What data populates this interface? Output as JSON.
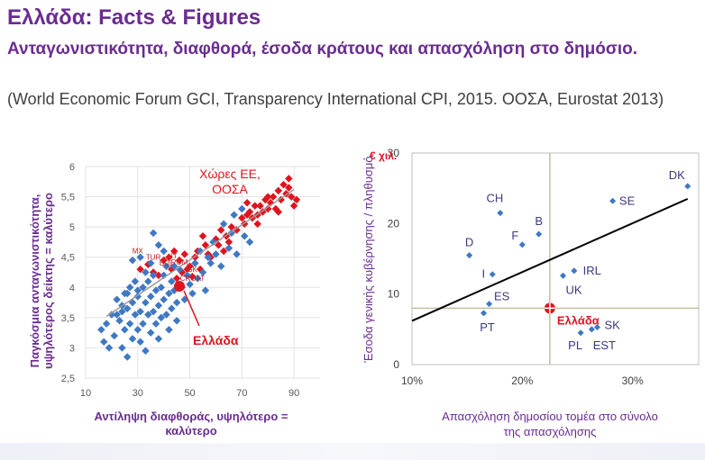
{
  "header": {
    "title": "Ελλάδα: Facts & Figures",
    "subtitle": "Ανταγωνιστικότητα, διαφθορά, έσοδα κράτους και απασχόληση στο δημόσιο.",
    "source": "(World Economic Forum GCI, Transparency International CPI, 2015. ΟΟΣΑ, Eurostat 2013)"
  },
  "colors": {
    "title": "#6a2c91",
    "blue": "#3f78c3",
    "red": "#e0141e",
    "axis_label": "#6a2c91"
  },
  "chart_data": [
    {
      "type": "scatter",
      "title": "",
      "xlabel": "Αντίληψη διαφθοράς, υψηλότερο = καλύτερο",
      "ylabel": "Παγκόσμια ανταγωνιστικότητα, υψηλότερος δείκτης = καλύτερο",
      "xlim": [
        10,
        100
      ],
      "ylim": [
        2.5,
        6
      ],
      "xticks": [
        "10",
        "30",
        "50",
        "70",
        "90"
      ],
      "yticks": [
        "2,5",
        "3",
        "3,5",
        "4",
        "4,5",
        "5",
        "5,5",
        "6"
      ],
      "grid": true,
      "legend": "Χώρες ΕΕ, ΟΟΣΑ",
      "annotations": [
        {
          "label": "MX",
          "x": 30,
          "y": 4.5
        },
        {
          "label": "TUR",
          "x": 36,
          "y": 4.4
        },
        {
          "label": "IT",
          "x": 44,
          "y": 4.42
        },
        {
          "label": "BUL",
          "x": 41,
          "y": 4.3
        },
        {
          "label": "ROM",
          "x": 46,
          "y": 4.32
        },
        {
          "label": "CROAT",
          "x": 51,
          "y": 4.05
        },
        {
          "label": "SK",
          "x": 51,
          "y": 4.2
        },
        {
          "label": "Ελλάδα",
          "x": 46,
          "y": 4.02
        }
      ],
      "highlight": {
        "name": "Ελλάδα",
        "x": 46,
        "y": 4.02
      },
      "trend": {
        "from": [
          18,
          3.52
        ],
        "to": [
          90,
          5.62
        ]
      },
      "series": [
        {
          "name": "Χώρες ΕΕ, ΟΟΣΑ",
          "points": [
            [
              31,
              4.3
            ],
            [
              34,
              4.38
            ],
            [
              36,
              4.25
            ],
            [
              38,
              4.2
            ],
            [
              40,
              4.45
            ],
            [
              42,
              4.5
            ],
            [
              43,
              4.3
            ],
            [
              44,
              4.6
            ],
            [
              45,
              4.15
            ],
            [
              46,
              4.45
            ],
            [
              47,
              4.25
            ],
            [
              48,
              4.55
            ],
            [
              49,
              4.3
            ],
            [
              50,
              4.35
            ],
            [
              51,
              4.18
            ],
            [
              52,
              4.5
            ],
            [
              53,
              4.6
            ],
            [
              54,
              4.3
            ],
            [
              55,
              4.85
            ],
            [
              56,
              4.7
            ],
            [
              57,
              4.55
            ],
            [
              58,
              4.5
            ],
            [
              60,
              4.8
            ],
            [
              61,
              4.7
            ],
            [
              62,
              4.95
            ],
            [
              63,
              4.6
            ],
            [
              64,
              4.85
            ],
            [
              65,
              4.75
            ],
            [
              66,
              5.0
            ],
            [
              68,
              4.95
            ],
            [
              70,
              5.15
            ],
            [
              71,
              5.05
            ],
            [
              72,
              5.2
            ],
            [
              73,
              5.25
            ],
            [
              74,
              5.15
            ],
            [
              75,
              5.35
            ],
            [
              76,
              5.2
            ],
            [
              77,
              5.35
            ],
            [
              78,
              5.25
            ],
            [
              79,
              5.45
            ],
            [
              80,
              5.3
            ],
            [
              81,
              5.4
            ],
            [
              82,
              5.5
            ],
            [
              83,
              5.3
            ],
            [
              84,
              5.6
            ],
            [
              85,
              5.45
            ],
            [
              86,
              5.7
            ],
            [
              87,
              5.55
            ],
            [
              88,
              5.65
            ],
            [
              89,
              5.5
            ],
            [
              90,
              5.35
            ],
            [
              91,
              5.45
            ],
            [
              84,
              5.25
            ],
            [
              80,
              5.5
            ],
            [
              76,
              5.05
            ],
            [
              72,
              5.4
            ],
            [
              88,
              5.8
            ]
          ]
        },
        {
          "name": "",
          "points": [
            [
              16,
              3.3
            ],
            [
              17,
              3.1
            ],
            [
              18,
              3.4
            ],
            [
              19,
              3.0
            ],
            [
              20,
              3.55
            ],
            [
              21,
              3.2
            ],
            [
              22,
              3.8
            ],
            [
              23,
              3.45
            ],
            [
              24,
              3.6
            ],
            [
              24,
              3.0
            ],
            [
              25,
              3.9
            ],
            [
              25,
              3.3
            ],
            [
              26,
              3.65
            ],
            [
              26,
              2.85
            ],
            [
              27,
              3.4
            ],
            [
              27,
              4.0
            ],
            [
              28,
              3.75
            ],
            [
              28,
              3.15
            ],
            [
              29,
              3.55
            ],
            [
              29,
              4.1
            ],
            [
              30,
              3.3
            ],
            [
              30,
              3.85
            ],
            [
              31,
              3.6
            ],
            [
              31,
              3.1
            ],
            [
              32,
              4.0
            ],
            [
              32,
              3.4
            ],
            [
              33,
              3.75
            ],
            [
              33,
              2.95
            ],
            [
              34,
              3.55
            ],
            [
              34,
              4.1
            ],
            [
              35,
              3.25
            ],
            [
              35,
              3.85
            ],
            [
              36,
              3.6
            ],
            [
              36,
              4.2
            ],
            [
              37,
              3.4
            ],
            [
              37,
              3.95
            ],
            [
              38,
              3.7
            ],
            [
              38,
              3.15
            ],
            [
              39,
              4.0
            ],
            [
              39,
              3.5
            ],
            [
              40,
              4.2
            ],
            [
              40,
              3.8
            ],
            [
              41,
              3.55
            ],
            [
              41,
              4.35
            ],
            [
              42,
              3.9
            ],
            [
              42,
              3.3
            ],
            [
              43,
              4.1
            ],
            [
              43,
              3.65
            ],
            [
              44,
              3.95
            ],
            [
              45,
              3.75
            ],
            [
              45,
              3.45
            ],
            [
              46,
              4.3
            ],
            [
              47,
              4.0
            ],
            [
              48,
              3.8
            ],
            [
              49,
              4.2
            ],
            [
              50,
              4.05
            ],
            [
              51,
              3.9
            ],
            [
              52,
              4.4
            ],
            [
              53,
              4.15
            ],
            [
              54,
              4.6
            ],
            [
              55,
              4.25
            ],
            [
              56,
              3.95
            ],
            [
              57,
              4.5
            ],
            [
              58,
              4.4
            ],
            [
              59,
              4.75
            ],
            [
              60,
              4.55
            ],
            [
              62,
              4.35
            ],
            [
              63,
              5.05
            ],
            [
              65,
              4.65
            ],
            [
              66,
              4.9
            ],
            [
              67,
              5.2
            ],
            [
              68,
              4.55
            ],
            [
              70,
              5.3
            ],
            [
              71,
              4.85
            ],
            [
              73,
              4.75
            ],
            [
              31,
              4.5
            ],
            [
              28,
              4.45
            ],
            [
              33,
              4.25
            ],
            [
              36,
              4.9
            ],
            [
              40,
              4.6
            ],
            [
              44,
              4.35
            ],
            [
              38,
              4.7
            ],
            [
              30,
              3.95
            ],
            [
              26,
              3.9
            ],
            [
              24,
              3.7
            ],
            [
              22,
              3.55
            ],
            [
              35,
              4.4
            ]
          ]
        }
      ]
    },
    {
      "type": "scatter",
      "title": "",
      "xlabel": "Απασχόληση δημοσίου τομέα στο σύνολο της απασχόλησης",
      "ylabel": "Έσοδα γενικής κυβέρνησης / πληθυσμό",
      "unit_label": "€ χιλ.",
      "xlim": [
        10,
        36
      ],
      "ylim": [
        0,
        30
      ],
      "xticks": [
        "10%",
        "20%",
        "30%"
      ],
      "yticks": [
        "0",
        "10",
        "20",
        "30"
      ],
      "grid": false,
      "reference_lines": {
        "x": 22.5,
        "y": 8
      },
      "trend": {
        "from": [
          10,
          6.2
        ],
        "to": [
          35,
          23.5
        ]
      },
      "highlight": {
        "name": "Ελλάδα",
        "x": 22.5,
        "y": 8
      },
      "series": [
        {
          "name": "",
          "points": [
            {
              "label": "DK",
              "x": 35,
              "y": 25.3
            },
            {
              "label": "SE",
              "x": 28.2,
              "y": 23.2
            },
            {
              "label": "CH",
              "x": 18,
              "y": 21.5
            },
            {
              "label": "B",
              "x": 21.5,
              "y": 18.5
            },
            {
              "label": "F",
              "x": 20,
              "y": 17
            },
            {
              "label": "D",
              "x": 15.2,
              "y": 15.5
            },
            {
              "label": "I",
              "x": 17.3,
              "y": 12.8
            },
            {
              "label": "IRL",
              "x": 24.7,
              "y": 13.3
            },
            {
              "label": "UK",
              "x": 23.7,
              "y": 12.6
            },
            {
              "label": "ES",
              "x": 17,
              "y": 8.6
            },
            {
              "label": "PT",
              "x": 16.5,
              "y": 7.3
            },
            {
              "label": "Ελλάδα",
              "x": 22.5,
              "y": 8
            },
            {
              "label": "SK",
              "x": 26.8,
              "y": 5.3
            },
            {
              "label": "PL",
              "x": 25.3,
              "y": 4.5
            },
            {
              "label": "EST",
              "x": 26.3,
              "y": 5.0
            }
          ]
        }
      ]
    }
  ]
}
